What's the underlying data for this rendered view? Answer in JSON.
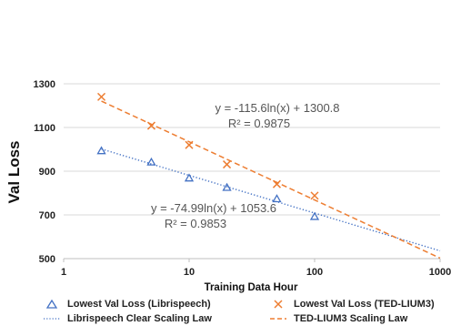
{
  "chart_data": {
    "type": "scatter",
    "xscale": "log",
    "xlim": [
      1,
      1000
    ],
    "ylim": [
      500,
      1300
    ],
    "xlabel": "Training Data Hour",
    "ylabel": "Val Loss",
    "xticks": [
      "1",
      "10",
      "100",
      "1000"
    ],
    "yticks": [
      "500",
      "700",
      "900",
      "1100",
      "1300"
    ],
    "grid": "horizontal",
    "legend_position": "bottom",
    "series": [
      {
        "name": "Lowest Val Loss (Librispeech)",
        "marker": "triangle",
        "color": "#4472c4",
        "x": [
          2,
          5,
          10,
          20,
          50,
          100
        ],
        "y": [
          993,
          941,
          868,
          825,
          773,
          692
        ]
      },
      {
        "name": "Lowest Val Loss (TED-LIUM3)",
        "marker": "x",
        "color": "#ed7d31",
        "x": [
          2,
          5,
          10,
          20,
          50,
          100
        ],
        "y": [
          1240,
          1108,
          1020,
          931,
          841,
          788
        ]
      }
    ],
    "trendlines": [
      {
        "name": "Librispeech Clear Scaling Law",
        "style": "dotted",
        "color": "#4472c4",
        "equation": "y = -74.99ln(x) + 1053.6",
        "r2": "R² = 0.9853",
        "a": -74.99,
        "b": 1053.6,
        "x_range": [
          2,
          1000
        ]
      },
      {
        "name": "TED-LIUM3 Scaling Law",
        "style": "dashed",
        "color": "#ed7d31",
        "equation": "y = -115.6ln(x) + 1300.8",
        "r2": "R² = 0.9875",
        "a": -115.6,
        "b": 1300.8,
        "x_range": [
          2,
          1000
        ]
      }
    ]
  }
}
